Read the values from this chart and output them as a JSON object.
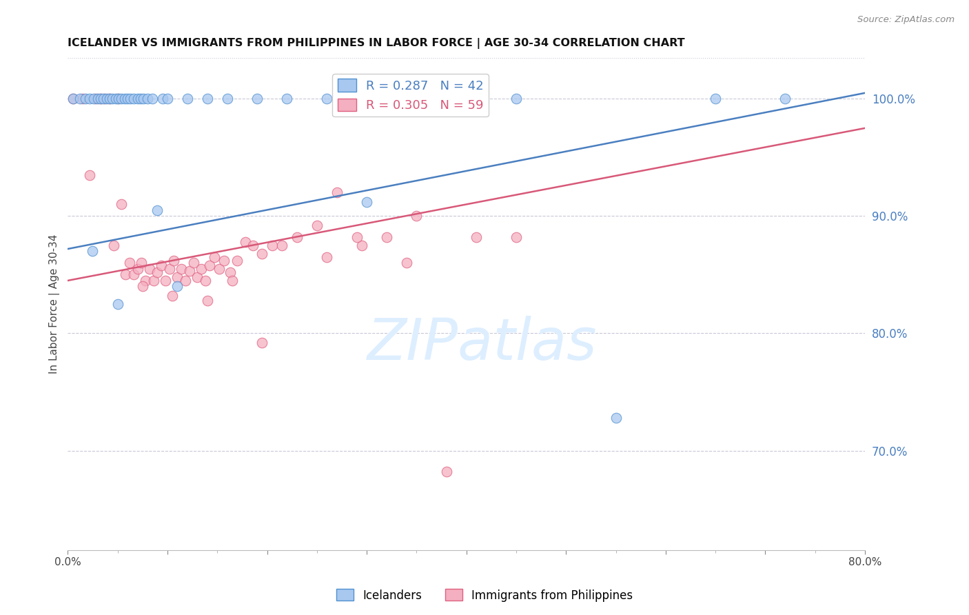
{
  "title": "ICELANDER VS IMMIGRANTS FROM PHILIPPINES IN LABOR FORCE | AGE 30-34 CORRELATION CHART",
  "source": "Source: ZipAtlas.com",
  "ylabel": "In Labor Force | Age 30-34",
  "xlim": [
    0.0,
    0.8
  ],
  "ylim": [
    0.615,
    1.035
  ],
  "right_yticks": [
    0.7,
    0.8,
    0.9,
    1.0
  ],
  "xtick_positions": [
    0.0,
    0.1,
    0.2,
    0.3,
    0.4,
    0.5,
    0.6,
    0.7,
    0.8
  ],
  "xtick_labels": [
    "0.0%",
    "",
    "",
    "",
    "",
    "",
    "",
    "",
    "80.0%"
  ],
  "blue_R": 0.287,
  "blue_N": 42,
  "pink_R": 0.305,
  "pink_N": 59,
  "legend_labels": [
    "Icelanders",
    "Immigrants from Philippines"
  ],
  "blue_color": "#a8c8f0",
  "pink_color": "#f4afc0",
  "blue_edge_color": "#5090d0",
  "pink_edge_color": "#e06080",
  "blue_line_color": "#4a7fc0",
  "pink_line_color": "#d85878",
  "grid_color": "#c8c8d8",
  "watermark_color": "#ddeeff",
  "blue_trend_x0": 0.0,
  "blue_trend_y0": 0.872,
  "blue_trend_x1": 0.8,
  "blue_trend_y1": 1.005,
  "pink_trend_x0": 0.0,
  "pink_trend_y0": 0.845,
  "pink_trend_x1": 0.8,
  "pink_trend_y1": 0.975,
  "blue_x": [
    0.005,
    0.012,
    0.018,
    0.022,
    0.026,
    0.03,
    0.033,
    0.036,
    0.039,
    0.042,
    0.045,
    0.048,
    0.051,
    0.054,
    0.057,
    0.06,
    0.063,
    0.066,
    0.07,
    0.073,
    0.076,
    0.08,
    0.085,
    0.09,
    0.095,
    0.1,
    0.11,
    0.12,
    0.14,
    0.16,
    0.19,
    0.22,
    0.26,
    0.3,
    0.38,
    0.4,
    0.45,
    0.55,
    0.65,
    0.72,
    0.025,
    0.05
  ],
  "blue_y": [
    1.0,
    1.0,
    1.0,
    1.0,
    1.0,
    1.0,
    1.0,
    1.0,
    1.0,
    1.0,
    1.0,
    1.0,
    1.0,
    1.0,
    1.0,
    1.0,
    1.0,
    1.0,
    1.0,
    1.0,
    1.0,
    1.0,
    1.0,
    0.905,
    1.0,
    1.0,
    0.84,
    1.0,
    1.0,
    1.0,
    1.0,
    1.0,
    1.0,
    0.912,
    1.0,
    1.0,
    1.0,
    0.728,
    1.0,
    1.0,
    0.87,
    0.825
  ],
  "pink_x": [
    0.005,
    0.015,
    0.022,
    0.028,
    0.033,
    0.037,
    0.042,
    0.046,
    0.05,
    0.054,
    0.058,
    0.062,
    0.066,
    0.07,
    0.074,
    0.078,
    0.082,
    0.086,
    0.09,
    0.094,
    0.098,
    0.102,
    0.106,
    0.11,
    0.114,
    0.118,
    0.122,
    0.126,
    0.13,
    0.134,
    0.138,
    0.142,
    0.147,
    0.152,
    0.157,
    0.163,
    0.17,
    0.178,
    0.186,
    0.195,
    0.205,
    0.215,
    0.23,
    0.25,
    0.27,
    0.295,
    0.32,
    0.35,
    0.38,
    0.41,
    0.45,
    0.29,
    0.34,
    0.26,
    0.195,
    0.165,
    0.14,
    0.105,
    0.075
  ],
  "pink_y": [
    1.0,
    1.0,
    0.935,
    1.0,
    1.0,
    1.0,
    1.0,
    0.875,
    1.0,
    0.91,
    0.85,
    0.86,
    0.85,
    0.855,
    0.86,
    0.845,
    0.855,
    0.845,
    0.852,
    0.858,
    0.845,
    0.855,
    0.862,
    0.848,
    0.855,
    0.845,
    0.853,
    0.86,
    0.848,
    0.855,
    0.845,
    0.858,
    0.865,
    0.855,
    0.862,
    0.852,
    0.862,
    0.878,
    0.875,
    0.792,
    0.875,
    0.875,
    0.882,
    0.892,
    0.92,
    0.875,
    0.882,
    0.9,
    0.682,
    0.882,
    0.882,
    0.882,
    0.86,
    0.865,
    0.868,
    0.845,
    0.828,
    0.832,
    0.84
  ]
}
